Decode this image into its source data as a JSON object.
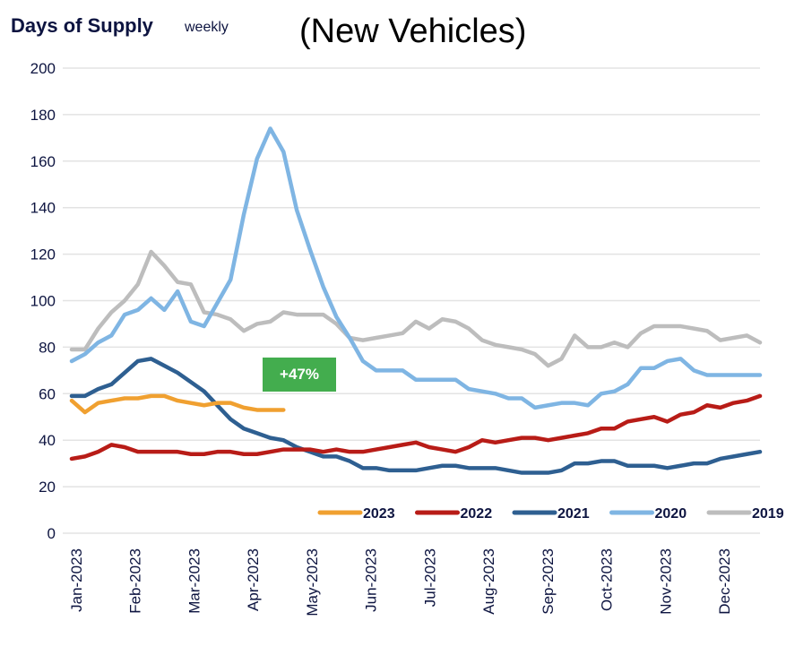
{
  "header": {
    "title": "Days of Supply",
    "subtitle": "weekly",
    "title2": "(New Vehicles)"
  },
  "annotation": {
    "text": "+47%",
    "color": "#43ad4e"
  },
  "chart_data": {
    "type": "line",
    "title": "Days of Supply",
    "subtitle": "weekly",
    "xlabel": "",
    "ylabel": "",
    "ylim": [
      0,
      200
    ],
    "yticks": [
      0,
      20,
      40,
      60,
      80,
      100,
      120,
      140,
      160,
      180,
      200
    ],
    "xtick_labels": [
      "Jan-2023",
      "Feb-2023",
      "Mar-2023",
      "Apr-2023",
      "May-2023",
      "Jun-2023",
      "Jul-2023",
      "Aug-2023",
      "Sep-2023",
      "Oct-2023",
      "Nov-2023",
      "Dec-2023"
    ],
    "x_unit": "week of year (1-53)",
    "grid": "horizontal",
    "legend": "bottom-right",
    "series": [
      {
        "name": "2023",
        "color": "#f0a030",
        "values": [
          57,
          52,
          56,
          57,
          58,
          58,
          59,
          59,
          57,
          56,
          55,
          56,
          56,
          54,
          53,
          53,
          53
        ]
      },
      {
        "name": "2022",
        "color": "#b81c17",
        "values": [
          32,
          33,
          35,
          38,
          37,
          35,
          35,
          35,
          35,
          34,
          34,
          35,
          35,
          34,
          34,
          35,
          36,
          36,
          36,
          35,
          36,
          35,
          35,
          36,
          37,
          38,
          39,
          37,
          36,
          35,
          37,
          40,
          39,
          40,
          41,
          41,
          40,
          41,
          42,
          43,
          45,
          45,
          48,
          49,
          50,
          48,
          51,
          52,
          55,
          54,
          56,
          57,
          59
        ]
      },
      {
        "name": "2021",
        "color": "#2e5f91",
        "values": [
          59,
          59,
          62,
          64,
          69,
          74,
          75,
          72,
          69,
          65,
          61,
          55,
          49,
          45,
          43,
          41,
          40,
          37,
          35,
          33,
          33,
          31,
          28,
          28,
          27,
          27,
          27,
          28,
          29,
          29,
          28,
          28,
          28,
          27,
          26,
          26,
          26,
          27,
          30,
          30,
          31,
          31,
          29,
          29,
          29,
          28,
          29,
          30,
          30,
          32,
          33,
          34,
          35
        ]
      },
      {
        "name": "2020",
        "color": "#7fb5e3",
        "values": [
          74,
          77,
          82,
          85,
          94,
          96,
          101,
          96,
          104,
          91,
          89,
          99,
          109,
          137,
          161,
          174,
          164,
          139,
          122,
          106,
          93,
          84,
          74,
          70,
          70,
          70,
          66,
          66,
          66,
          66,
          62,
          61,
          60,
          58,
          58,
          54,
          55,
          56,
          56,
          55,
          60,
          61,
          64,
          71,
          71,
          74,
          75,
          70,
          68,
          68,
          68,
          68,
          68
        ]
      },
      {
        "name": "2019",
        "color": "#bdbdbd",
        "values": [
          79,
          79,
          88,
          95,
          100,
          107,
          121,
          115,
          108,
          107,
          95,
          94,
          92,
          87,
          90,
          91,
          95,
          94,
          94,
          94,
          90,
          84,
          83,
          84,
          85,
          86,
          91,
          88,
          92,
          91,
          88,
          83,
          81,
          80,
          79,
          77,
          72,
          75,
          85,
          80,
          80,
          82,
          80,
          86,
          89,
          89,
          89,
          88,
          87,
          83,
          84,
          85,
          82
        ]
      }
    ]
  }
}
